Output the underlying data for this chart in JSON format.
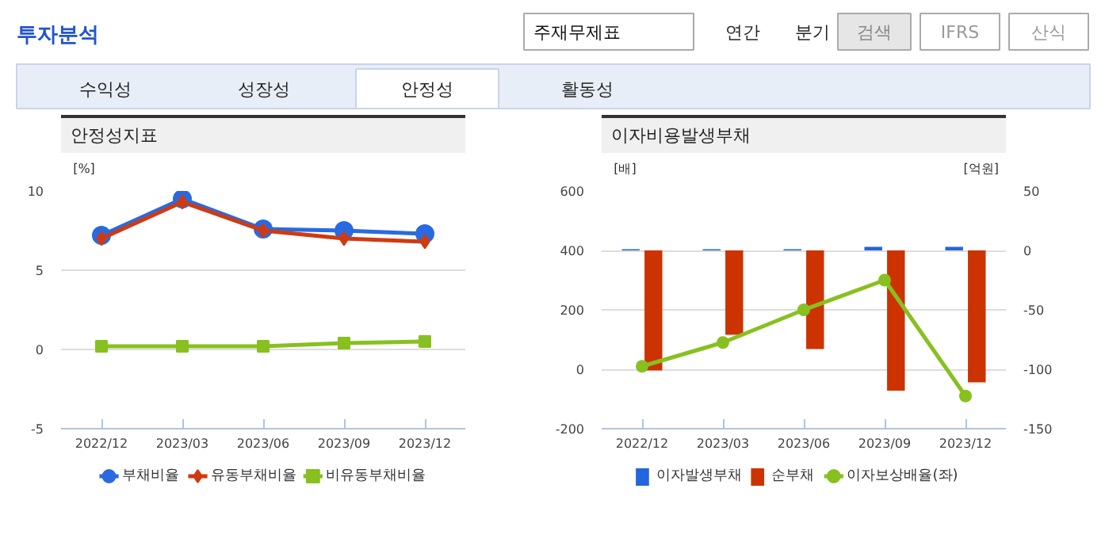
{
  "chart_data": [
    {
      "type": "other",
      "title": "투자분석",
      "annotations": [
        "주재무제표",
        "연간",
        "분기",
        "검색",
        "IFRS",
        "산식",
        "수익성",
        "성장성",
        "안정성",
        "활동성"
      ]
    },
    {
      "type": "line",
      "title": "안정성지표",
      "ylabel": "[%]",
      "categories": [
        "2022/12",
        "2023/03",
        "2023/06",
        "2023/09",
        "2023/12"
      ],
      "ylim": [
        -5,
        10
      ],
      "yticks": [
        -5,
        0,
        5,
        10
      ],
      "grid": "y",
      "legend": "bottom",
      "series": [
        {
          "name": "부채비율",
          "color": "#2a6ae0",
          "marker": "circle",
          "values": [
            7.2,
            9.5,
            7.6,
            7.5,
            7.3
          ]
        },
        {
          "name": "유동부채비율",
          "color": "#d03a10",
          "marker": "diamond",
          "values": [
            7.0,
            9.3,
            7.5,
            7.0,
            6.8
          ]
        },
        {
          "name": "비유동부채비율",
          "color": "#88c020",
          "marker": "square",
          "values": [
            0.2,
            0.2,
            0.2,
            0.4,
            0.5
          ]
        }
      ]
    },
    {
      "type": "bar",
      "title": "이자비용발생부채",
      "ylabel": "[배]",
      "y2label": "[억원]",
      "categories": [
        "2022/12",
        "2023/03",
        "2023/06",
        "2023/09",
        "2023/12"
      ],
      "ylim": [
        -200,
        600
      ],
      "yticks": [
        -200,
        0,
        200,
        400,
        600
      ],
      "y2lim": [
        -150,
        50
      ],
      "y2ticks": [
        -150,
        -100,
        -50,
        0,
        50
      ],
      "grid": "y",
      "legend": "bottom",
      "series": [
        {
          "name": "이자발생부채",
          "color": "#2266dd",
          "type": "bar",
          "axis": "y2",
          "values": [
            1,
            1,
            1,
            3,
            3
          ]
        },
        {
          "name": "순부채",
          "color": "#cc3300",
          "type": "bar",
          "axis": "y2",
          "values": [
            -101,
            -71,
            -83,
            -118,
            -111
          ]
        },
        {
          "name": "이자보상배율(좌)",
          "color": "#88c020",
          "type": "line",
          "axis": "y",
          "marker": "circle",
          "values": [
            10,
            90,
            200,
            300,
            -90
          ]
        }
      ]
    }
  ]
}
